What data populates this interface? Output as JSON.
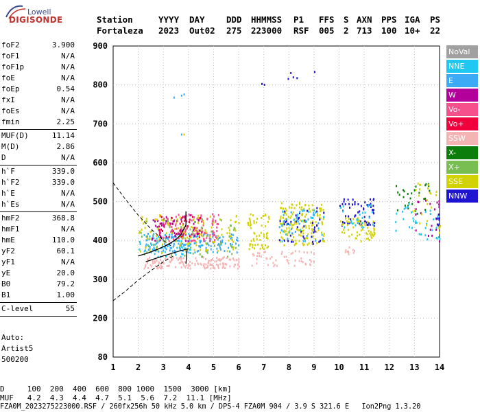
{
  "logo": {
    "line1": "Lowell",
    "line2": "DIGISONDE"
  },
  "header": {
    "row1": [
      "Station",
      "YYYY",
      "DAY",
      "DDD",
      "HHMMSS",
      "P1",
      "FFS",
      "S",
      "AXN",
      "PPS",
      "IGA",
      "PS"
    ],
    "row2": [
      "Fortaleza",
      "2023",
      "Out02",
      "275",
      "223000",
      "RSF",
      "005",
      "2",
      "713",
      "100",
      "10+",
      "22"
    ]
  },
  "params": [
    {
      "label": "foF2",
      "value": "3.900"
    },
    {
      "label": "foF1",
      "value": "N/A"
    },
    {
      "label": "foF1p",
      "value": "N/A"
    },
    {
      "label": "foE",
      "value": "N/A"
    },
    {
      "label": "foEp",
      "value": "0.54"
    },
    {
      "label": "fxI",
      "value": "N/A"
    },
    {
      "label": "foEs",
      "value": "N/A"
    },
    {
      "label": "fmin",
      "value": "2.25"
    },
    {
      "sep": true
    },
    {
      "label": "MUF(D)",
      "value": "11.14"
    },
    {
      "label": "M(D)",
      "value": "2.86"
    },
    {
      "label": "D",
      "value": "N/A"
    },
    {
      "sep": true
    },
    {
      "label": "h`F",
      "value": "339.0"
    },
    {
      "label": "h`F2",
      "value": "339.0"
    },
    {
      "label": "h`E",
      "value": "N/A"
    },
    {
      "label": "h`Es",
      "value": "N/A"
    },
    {
      "sep": true
    },
    {
      "label": "hmF2",
      "value": "368.8"
    },
    {
      "label": "hmF1",
      "value": "N/A"
    },
    {
      "label": "hmE",
      "value": "110.0"
    },
    {
      "label": "yF2",
      "value": "60.1"
    },
    {
      "label": "yF1",
      "value": "N/A"
    },
    {
      "label": "yE",
      "value": "20.0"
    },
    {
      "label": "B0",
      "value": "79.2"
    },
    {
      "label": "B1",
      "value": "1.00"
    },
    {
      "sep": true
    },
    {
      "label": "C-level",
      "value": "55"
    },
    {
      "sep": true
    }
  ],
  "auto": [
    "Auto:",
    "Artist5",
    "500200"
  ],
  "legend": [
    {
      "label": "NoVal",
      "color": "#a0a0a0"
    },
    {
      "label": "NNE",
      "color": "#1ec8f0"
    },
    {
      "label": "E",
      "color": "#3caaf5"
    },
    {
      "label": "W",
      "color": "#b4009b"
    },
    {
      "label": "Vo-",
      "color": "#f5508c"
    },
    {
      "label": "Vo+",
      "color": "#f0003c"
    },
    {
      "label": "SSW",
      "color": "#f5b4b4"
    },
    {
      "label": "X-",
      "color": "#0a7d0a"
    },
    {
      "label": "X+",
      "color": "#78be50"
    },
    {
      "label": "SSE",
      "color": "#d2d200"
    },
    {
      "label": "NNW",
      "color": "#1e14d2"
    }
  ],
  "bottom": {
    "d_row": "D     100  200  400  600  800 1000  1500  3000 [km]",
    "muf_row": "MUF   4.2  4.3  4.4  4.7  5.1  5.6  7.2  11.1 [MHz]",
    "footer": "FZA0M_2023275223000.RSF / 260fx256h 50 kHz 5.0 km / DPS-4 FZA0M 904 / 3.9 S 321.6 E   Ion2Png 1.3.20"
  },
  "chart_data": {
    "type": "scatter",
    "title": "",
    "xlabel": "",
    "ylabel": "",
    "xlim": [
      1,
      14
    ],
    "ylim": [
      80,
      900
    ],
    "x_ticks": [
      1,
      2,
      3,
      4,
      5,
      6,
      7,
      8,
      9,
      10,
      11,
      12,
      13,
      14
    ],
    "y_ticks": [
      80,
      200,
      300,
      400,
      500,
      600,
      700,
      800,
      900
    ],
    "grid": "dotted",
    "clusters": [
      {
        "color": "NNE",
        "x": [
          2.0,
          4.5
        ],
        "y": [
          360,
          420
        ],
        "n": 80
      },
      {
        "color": "E",
        "x": [
          2.2,
          6.0
        ],
        "y": [
          370,
          420
        ],
        "n": 140
      },
      {
        "color": "Vo-",
        "x": [
          2.8,
          5.2
        ],
        "y": [
          400,
          470
        ],
        "n": 120
      },
      {
        "color": "Vo+",
        "x": [
          2.8,
          4.6
        ],
        "y": [
          410,
          470
        ],
        "n": 50
      },
      {
        "color": "W",
        "x": [
          2.5,
          4.5
        ],
        "y": [
          400,
          470
        ],
        "n": 50
      },
      {
        "color": "SSE",
        "x": [
          2.0,
          6.0
        ],
        "y": [
          370,
          470
        ],
        "n": 120
      },
      {
        "color": "X+",
        "x": [
          2.0,
          6.0
        ],
        "y": [
          360,
          460
        ],
        "n": 50
      },
      {
        "color": "SSW",
        "x": [
          2.2,
          6.0
        ],
        "y": [
          330,
          360
        ],
        "n": 150
      },
      {
        "color": "SSE",
        "x": [
          6.3,
          7.2
        ],
        "y": [
          380,
          470
        ],
        "n": 60
      },
      {
        "color": "SSE",
        "x": [
          7.6,
          9.4
        ],
        "y": [
          390,
          500
        ],
        "n": 160
      },
      {
        "color": "NNW",
        "x": [
          7.6,
          9.4
        ],
        "y": [
          390,
          490
        ],
        "n": 40
      },
      {
        "color": "E",
        "x": [
          7.6,
          9.4
        ],
        "y": [
          400,
          480
        ],
        "n": 30
      },
      {
        "color": "NNE",
        "x": [
          7.6,
          9.4
        ],
        "y": [
          400,
          480
        ],
        "n": 25
      },
      {
        "color": "SSW",
        "x": [
          6.5,
          9.1
        ],
        "y": [
          335,
          375
        ],
        "n": 50
      },
      {
        "color": "NNW",
        "x": [
          10.0,
          11.4
        ],
        "y": [
          440,
          510
        ],
        "n": 60
      },
      {
        "color": "SSE",
        "x": [
          10.0,
          11.4
        ],
        "y": [
          400,
          460
        ],
        "n": 60
      },
      {
        "color": "NNE",
        "x": [
          10.0,
          11.4
        ],
        "y": [
          430,
          500
        ],
        "n": 25
      },
      {
        "color": "SSW",
        "x": [
          10.2,
          10.6
        ],
        "y": [
          365,
          385
        ],
        "n": 10
      },
      {
        "color": "X-",
        "x": [
          12.2,
          13.6
        ],
        "y": [
          470,
          550
        ],
        "n": 30
      },
      {
        "color": "NNE",
        "x": [
          12.2,
          14.0
        ],
        "y": [
          400,
          500
        ],
        "n": 35
      },
      {
        "color": "W",
        "x": [
          13.0,
          14.0
        ],
        "y": [
          400,
          510
        ],
        "n": 20
      },
      {
        "color": "SSE",
        "x": [
          12.9,
          14.0
        ],
        "y": [
          420,
          550
        ],
        "n": 25
      },
      {
        "color": "NNW",
        "x": [
          13.8,
          14.0
        ],
        "y": [
          440,
          470
        ],
        "n": 8
      }
    ],
    "isolated_points": [
      {
        "color": "E",
        "x": 3.4,
        "y": 770
      },
      {
        "color": "E",
        "x": 3.7,
        "y": 775
      },
      {
        "color": "E",
        "x": 3.8,
        "y": 778
      },
      {
        "color": "E",
        "x": 3.7,
        "y": 675
      },
      {
        "color": "SSE",
        "x": 3.8,
        "y": 675
      },
      {
        "color": "NNW",
        "x": 6.9,
        "y": 805
      },
      {
        "color": "NNW",
        "x": 7.0,
        "y": 803
      },
      {
        "color": "NNW",
        "x": 7.95,
        "y": 818
      },
      {
        "color": "NNW",
        "x": 8.05,
        "y": 833
      },
      {
        "color": "NNW",
        "x": 8.15,
        "y": 822
      },
      {
        "color": "NNW",
        "x": 8.3,
        "y": 820
      },
      {
        "color": "NNW",
        "x": 9.0,
        "y": 836
      }
    ],
    "profile_solid": [
      [
        2.0,
        360
      ],
      [
        2.4,
        368
      ],
      [
        2.8,
        378
      ],
      [
        3.2,
        390
      ],
      [
        3.5,
        402
      ],
      [
        3.7,
        415
      ],
      [
        3.9,
        440
      ],
      [
        3.9,
        475
      ]
    ],
    "profile_solid2": [
      [
        2.3,
        345
      ],
      [
        2.8,
        356
      ],
      [
        3.2,
        364
      ],
      [
        3.6,
        372
      ],
      [
        3.95,
        378
      ],
      [
        3.9,
        340
      ]
    ],
    "dashed_upper": [
      [
        1.0,
        548
      ],
      [
        1.5,
        505
      ],
      [
        2.0,
        465
      ],
      [
        2.5,
        430
      ],
      [
        3.0,
        400
      ],
      [
        3.4,
        382
      ]
    ],
    "dashed_lower": [
      [
        1.0,
        245
      ],
      [
        1.5,
        270
      ],
      [
        2.0,
        298
      ],
      [
        2.5,
        322
      ],
      [
        3.0,
        345
      ],
      [
        3.4,
        360
      ]
    ]
  }
}
